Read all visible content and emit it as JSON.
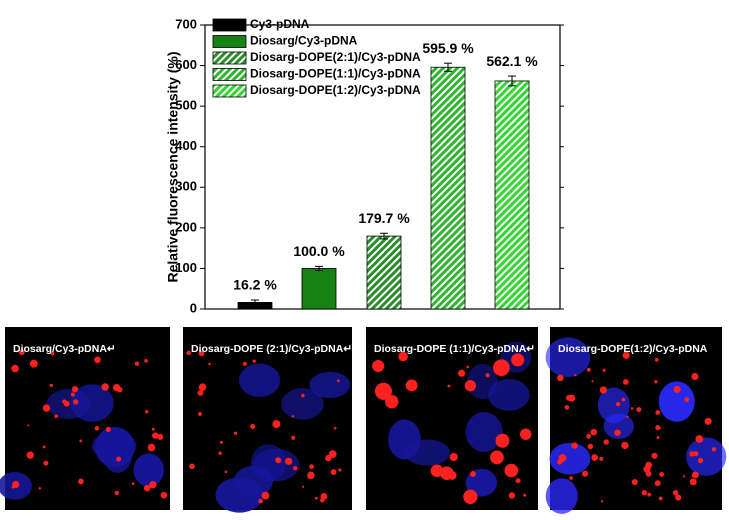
{
  "chart_data": {
    "type": "bar",
    "y_label": "Relative fluorescence intensity (%)",
    "ylim": [
      0,
      700
    ],
    "yticks": [
      0,
      100,
      200,
      300,
      400,
      500,
      600,
      700
    ],
    "series": [
      {
        "name": "Cy3-pDNA",
        "color": "#000000",
        "hatch": false,
        "values": [
          16.2
        ],
        "value_labels": [
          "16.2 %"
        ],
        "errors": [
          6
        ]
      },
      {
        "name": "Diosarg/Cy3-pDNA",
        "color": "#168216",
        "hatch": false,
        "values": [
          100.0
        ],
        "value_labels": [
          "100.0 %"
        ],
        "errors": [
          5
        ]
      },
      {
        "name": "Diosarg-DOPE(2:1)/Cy3-pDNA",
        "color": "#2a8f2a",
        "hatch": true,
        "values": [
          179.7
        ],
        "value_labels": [
          "179.7 %"
        ],
        "errors": [
          7
        ]
      },
      {
        "name": "Diosarg-DOPE(1:1)/Cy3-pDNA",
        "color": "#2fb52f",
        "hatch": true,
        "values": [
          595.9
        ],
        "value_labels": [
          "595.9 %"
        ],
        "errors": [
          10
        ]
      },
      {
        "name": "Diosarg-DOPE(1:2)/Cy3-pDNA",
        "color": "#33d633",
        "hatch": true,
        "values": [
          562.1
        ],
        "value_labels": [
          "562.1 %"
        ],
        "errors": [
          12
        ]
      }
    ]
  },
  "images": [
    {
      "caption": "Diosarg/Cy3-pDNA↵"
    },
    {
      "caption": "Diosarg-DOPE (2:1)/Cy3-pDNA↵"
    },
    {
      "caption": "Diosarg-DOPE (1:1)/Cy3-pDNA↵"
    },
    {
      "caption": "Diosarg-DOPE(1:2)/Cy3-pDNA"
    }
  ]
}
